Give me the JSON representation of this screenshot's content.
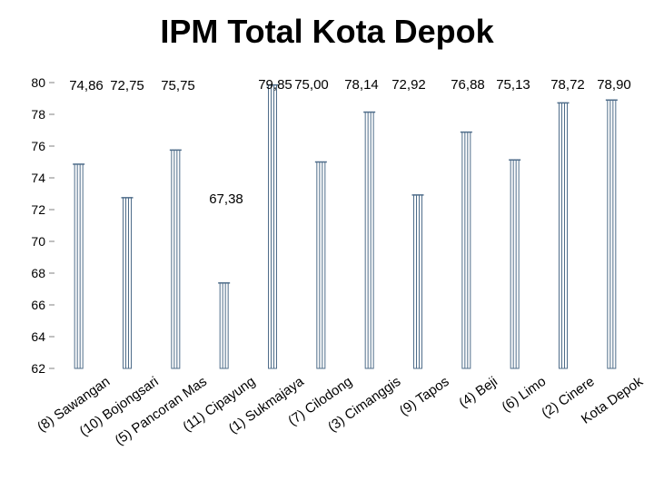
{
  "chart_data": {
    "type": "bar",
    "title": "IPM Total Kota Depok",
    "xlabel": "",
    "ylabel": "",
    "ylim": [
      62,
      80
    ],
    "yticks": [
      62,
      64,
      66,
      68,
      70,
      72,
      74,
      76,
      78,
      80
    ],
    "grid": false,
    "legend": "none",
    "bar_color": "#4f6d8a",
    "categories": [
      "(8) Sawangan",
      "(10) Bojongsari",
      "(5) Pancoran Mas",
      "(11) Cipayung",
      "(1) Sukmajaya",
      "(7) Cilodong",
      "(3) Cimanggis",
      "(9) Tapos",
      "(4) Beji",
      "(6) Limo",
      "(2) Cinere",
      "Kota Depok"
    ],
    "values": [
      74.86,
      72.75,
      75.75,
      67.38,
      79.85,
      75.0,
      78.14,
      72.92,
      76.88,
      75.13,
      78.72,
      78.9
    ],
    "value_labels": [
      "74,86",
      "72,75",
      "75,75",
      "67,38",
      "79,85",
      "75,00",
      "78,14",
      "72,92",
      "76,88",
      "75,13",
      "78,72",
      "78,90"
    ]
  }
}
